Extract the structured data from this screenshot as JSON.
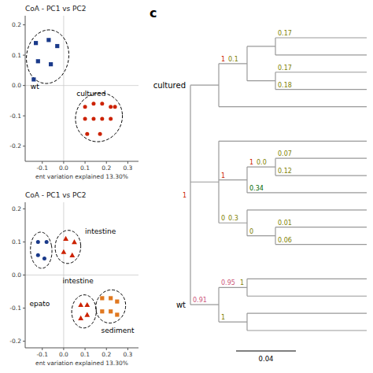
{
  "chart_data": [
    {
      "type": "scatter",
      "title": "CoA - PC1 vs PC2",
      "x_label": "ent variation explained 13.30%",
      "xlim": [
        -0.18,
        0.35
      ],
      "ylim": [
        -0.25,
        0.23
      ],
      "xticks": [
        -0.1,
        {
          "value": 0.0,
          "label": "0.0"
        },
        0.1,
        0.2,
        0.3
      ],
      "yticks": [
        -0.2,
        -0.1,
        {
          "value": 0.0,
          "label": "0.0"
        },
        0.1,
        0.2
      ],
      "hlines": [
        0
      ],
      "vlines": [
        0
      ],
      "series": [
        {
          "color": "#1a3a8a",
          "marker": "square",
          "x": [
            -0.13,
            -0.07,
            -0.03,
            -0.12,
            -0.06,
            -0.14
          ],
          "values": [
            0.14,
            0.15,
            0.13,
            0.08,
            0.07,
            0.02
          ]
        },
        {
          "color": "#cc2200",
          "marker": "circle",
          "x": [
            0.1,
            0.14,
            0.18,
            0.22,
            0.24,
            0.1,
            0.14,
            0.18,
            0.22,
            0.11,
            0.17
          ],
          "values": [
            -0.07,
            -0.06,
            -0.06,
            -0.07,
            -0.07,
            -0.11,
            -0.11,
            -0.11,
            -0.11,
            -0.16,
            -0.16
          ]
        }
      ],
      "ellipses": [
        {
          "cx": -0.075,
          "cy": 0.095,
          "width": 0.2,
          "height": 0.175,
          "angle": 15,
          "line_style": "dashed"
        },
        {
          "cx": 0.165,
          "cy": -0.105,
          "width": 0.22,
          "height": 0.16,
          "angle": 5,
          "line_style": "dashed"
        }
      ],
      "annotations": [
        {
          "text": "wt",
          "x": -0.155,
          "y": -0.01
        },
        {
          "text": "cultured",
          "x": 0.06,
          "y": -0.035
        }
      ]
    },
    {
      "type": "scatter",
      "title": "CoA - PC1 vs PC2",
      "x_label": "ent variation explained 13.30%",
      "xlim": [
        -0.18,
        0.35
      ],
      "ylim": [
        -0.22,
        0.22
      ],
      "xticks": [
        -0.1,
        {
          "value": 0.0,
          "label": "0.0"
        },
        0.1,
        0.2,
        0.3
      ],
      "yticks": [
        -0.2,
        -0.1,
        {
          "value": 0.0,
          "label": "0.0"
        },
        0.1,
        0.2
      ],
      "hlines": [
        0
      ],
      "vlines": [
        0
      ],
      "series": [
        {
          "color": "#1a3a8a",
          "marker": "circle",
          "x": [
            -0.12,
            -0.08,
            -0.12,
            -0.09
          ],
          "values": [
            0.1,
            0.1,
            0.06,
            0.05
          ]
        },
        {
          "color": "#cc2200",
          "marker": "triangle",
          "x": [
            0.01,
            0.05,
            0.0,
            0.04
          ],
          "values": [
            0.11,
            0.1,
            0.07,
            0.06
          ]
        },
        {
          "color": "#cc2200",
          "marker": "triangle",
          "x": [
            0.08,
            0.11,
            0.08,
            0.11
          ],
          "values": [
            -0.09,
            -0.09,
            -0.13,
            -0.12
          ]
        },
        {
          "color": "#e07820",
          "marker": "square",
          "x": [
            0.18,
            0.22,
            0.25,
            0.18,
            0.22,
            0.25
          ],
          "values": [
            -0.07,
            -0.07,
            -0.08,
            -0.11,
            -0.11,
            -0.12
          ]
        }
      ],
      "ellipses": [
        {
          "cx": -0.105,
          "cy": 0.075,
          "width": 0.1,
          "height": 0.11,
          "angle": 15,
          "line_style": "dashed"
        },
        {
          "cx": 0.02,
          "cy": 0.085,
          "width": 0.12,
          "height": 0.1,
          "angle": 5,
          "line_style": "dashed"
        },
        {
          "cx": 0.095,
          "cy": -0.11,
          "width": 0.115,
          "height": 0.1,
          "angle": 5,
          "line_style": "dashed"
        },
        {
          "cx": 0.22,
          "cy": -0.095,
          "width": 0.14,
          "height": 0.1,
          "angle": 5,
          "line_style": "dashed"
        }
      ],
      "annotations": [
        {
          "text": "intestine",
          "x": 0.1,
          "y": 0.125
        },
        {
          "text": "intestine",
          "x": -0.005,
          "y": -0.025
        },
        {
          "text": "epato",
          "x": -0.16,
          "y": -0.095
        },
        {
          "text": "sediment",
          "x": 0.175,
          "y": -0.175
        }
      ]
    },
    {
      "type": "tree",
      "title": "c",
      "color": "#999999",
      "tree": {
        "labels": [
          {
            "text": "1",
            "color": "#cc2200"
          }
        ],
        "children": [
          {
            "name": "cultured",
            "children": [
              {
                "labels": [
                  {
                    "text": "1",
                    "color": "#cc2200"
                  },
                  {
                    "text": "0.1",
                    "color": "#808000"
                  }
                ],
                "children": [
                  {
                    "children": [
                      {
                        "labels": [
                          {
                            "text": "0.17",
                            "color": "#808000"
                          }
                        ]
                      },
                      {}
                    ]
                  },
                  {
                    "children": [
                      {
                        "labels": [
                          {
                            "text": "0.17",
                            "color": "#808000"
                          }
                        ]
                      },
                      {
                        "labels": [
                          {
                            "text": "0.18",
                            "color": "#808000"
                          }
                        ]
                      }
                    ]
                  }
                ]
              },
              {}
            ]
          },
          {
            "children": [
              {},
              {
                "labels": [
                  {
                    "text": "1",
                    "color": "#cc2200"
                  }
                ],
                "children": [
                  {
                    "labels": [
                      {
                        "text": "1",
                        "color": "#cc2200"
                      },
                      {
                        "text": "0.0",
                        "color": "#808000"
                      }
                    ],
                    "children": [
                      {
                        "labels": [
                          {
                            "text": "0.07",
                            "color": "#808000"
                          }
                        ]
                      },
                      {
                        "labels": [
                          {
                            "text": "0.12",
                            "color": "#808000"
                          }
                        ]
                      }
                    ]
                  },
                  {
                    "labels": [
                      {
                        "text": "0.34",
                        "color": "#006600"
                      }
                    ]
                  }
                ]
              },
              {
                "labels": [
                  {
                    "text": "0",
                    "color": "#808000"
                  },
                  {
                    "text": "0.3",
                    "color": "#808000"
                  }
                ],
                "children": [
                  {},
                  {
                    "labels": [
                      {
                        "text": "0",
                        "color": "#808000"
                      }
                    ],
                    "children": [
                      {
                        "labels": [
                          {
                            "text": "0.01",
                            "color": "#808000"
                          }
                        ]
                      },
                      {
                        "labels": [
                          {
                            "text": "0.06",
                            "color": "#808000"
                          }
                        ]
                      }
                    ]
                  }
                ]
              }
            ]
          },
          {
            "name": "wt",
            "labels": [
              {
                "text": "0.91",
                "color": "#cc5577"
              }
            ],
            "children": [
              {
                "labels": [
                  {
                    "text": "0.95",
                    "color": "#cc5577"
                  },
                  {
                    "text": "1",
                    "color": "#808000"
                  }
                ],
                "children": [
                  {},
                  {}
                ]
              },
              {
                "labels": [
                  {
                    "text": "1",
                    "color": "#808000"
                  }
                ],
                "children": [
                  {},
                  {}
                ]
              }
            ]
          }
        ]
      },
      "annotations": [
        {
          "text": "0.04"
        }
      ]
    }
  ]
}
